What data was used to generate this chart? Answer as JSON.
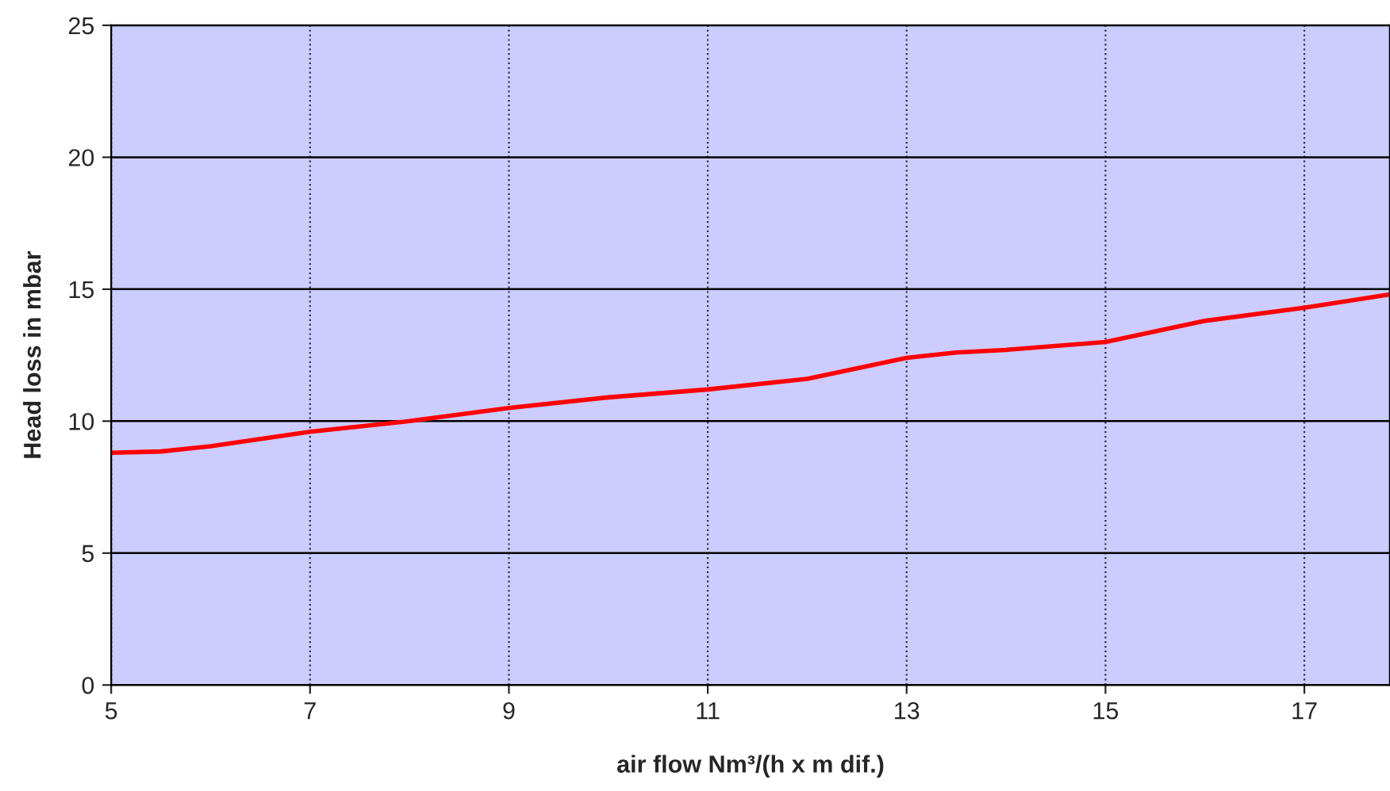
{
  "chart_data": {
    "type": "line",
    "xlabel": "air flow Nm³/(h x m dif.)",
    "ylabel": "Head loss in mbar",
    "series": [
      {
        "color": "#ff0000",
        "x": [
          5,
          5.5,
          6,
          7,
          8,
          9,
          10,
          11,
          12,
          13,
          13.5,
          14,
          15,
          16,
          17,
          17.86
        ],
        "values": [
          8.8,
          8.85,
          9.05,
          9.6,
          10.0,
          10.5,
          10.9,
          11.2,
          11.6,
          12.4,
          12.6,
          12.7,
          13.0,
          13.8,
          14.3,
          14.8
        ]
      }
    ],
    "xlim": [
      5,
      17.86
    ],
    "xticks": [
      5,
      7,
      9,
      11,
      13,
      15,
      17
    ],
    "ylim": [
      0,
      25
    ],
    "yticks": [
      0,
      5,
      10,
      15,
      20,
      25
    ],
    "grid": true,
    "line_style": "solid",
    "marker": "none"
  }
}
